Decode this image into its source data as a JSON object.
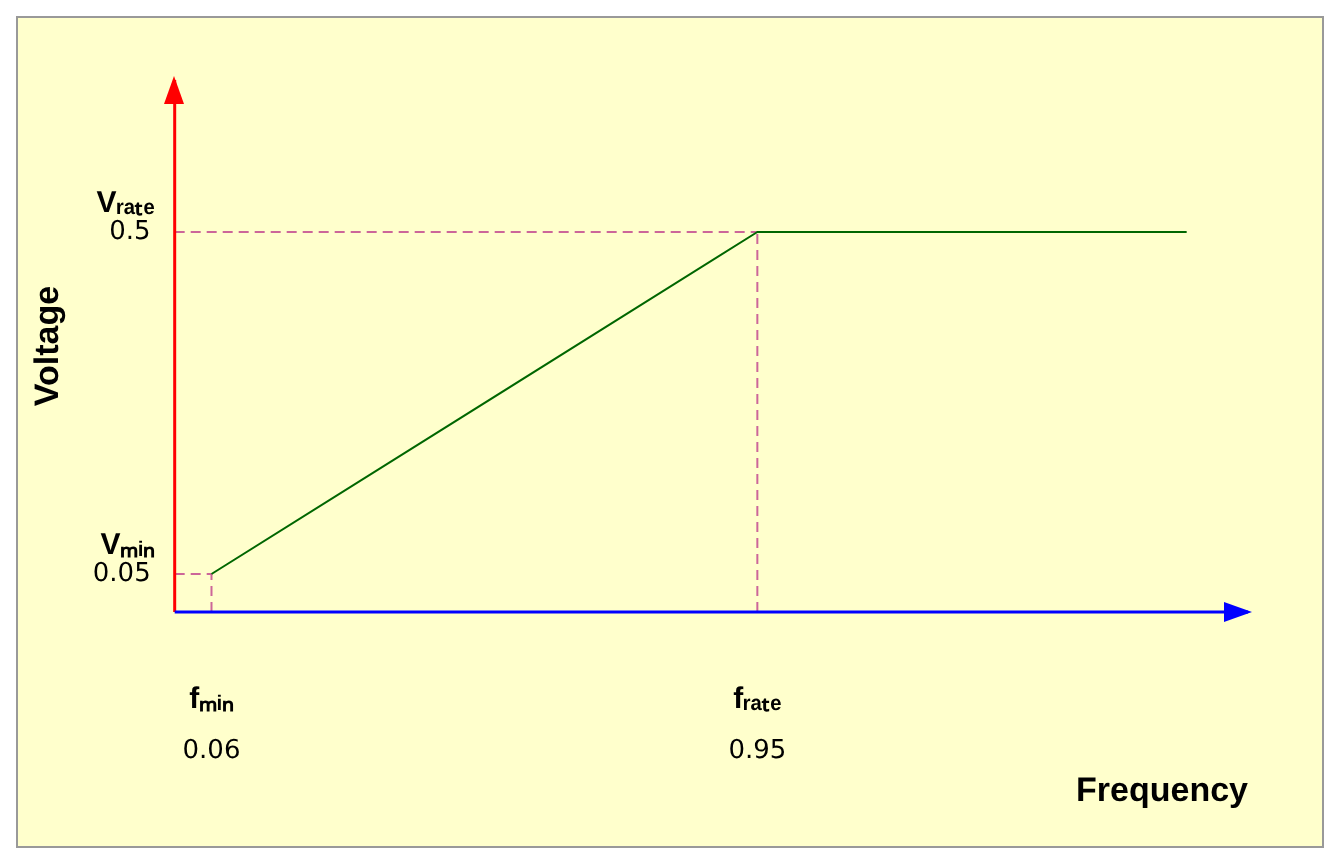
{
  "chart_data": {
    "type": "line",
    "xlabel": "Frequency",
    "ylabel": "Voltage",
    "xlim": [
      0,
      1.75
    ],
    "ylim": [
      0,
      0.7
    ],
    "xticks": [
      0.06,
      0.95
    ],
    "yticks": [
      0.05,
      0.5
    ],
    "annotations": [
      {
        "text": "fₘᵢₙ",
        "x": 0.06,
        "y": 0
      },
      {
        "text": "fᵣₐₜₑ",
        "x": 0.95,
        "y": 0
      },
      {
        "text": "Vₘᵢₙ",
        "x": 0,
        "y": 0.05
      },
      {
        "text": "Vᵣₐₜₑ",
        "x": 0,
        "y": 0.5
      }
    ],
    "series": [
      {
        "color": "#006600",
        "x": [
          0.06,
          0.95,
          1.65
        ],
        "values": [
          0.05,
          0.5,
          0.5
        ],
        "line_style": "solid"
      },
      {
        "color": "#cc6699",
        "x": [
          0,
          0.06
        ],
        "values": [
          0.05,
          0.05
        ],
        "line_style": "dashed"
      },
      {
        "color": "#cc6699",
        "x": [
          0.06,
          0.06
        ],
        "values": [
          0,
          0.05
        ],
        "line_style": "dashed"
      },
      {
        "color": "#cc6699",
        "x": [
          0,
          0.95
        ],
        "values": [
          0.5,
          0.5
        ],
        "line_style": "dashed"
      },
      {
        "color": "#cc6699",
        "x": [
          0.95,
          0.95
        ],
        "values": [
          0,
          0.5
        ],
        "line_style": "dashed"
      }
    ],
    "grid": false,
    "legend": false,
    "marker": "none"
  }
}
